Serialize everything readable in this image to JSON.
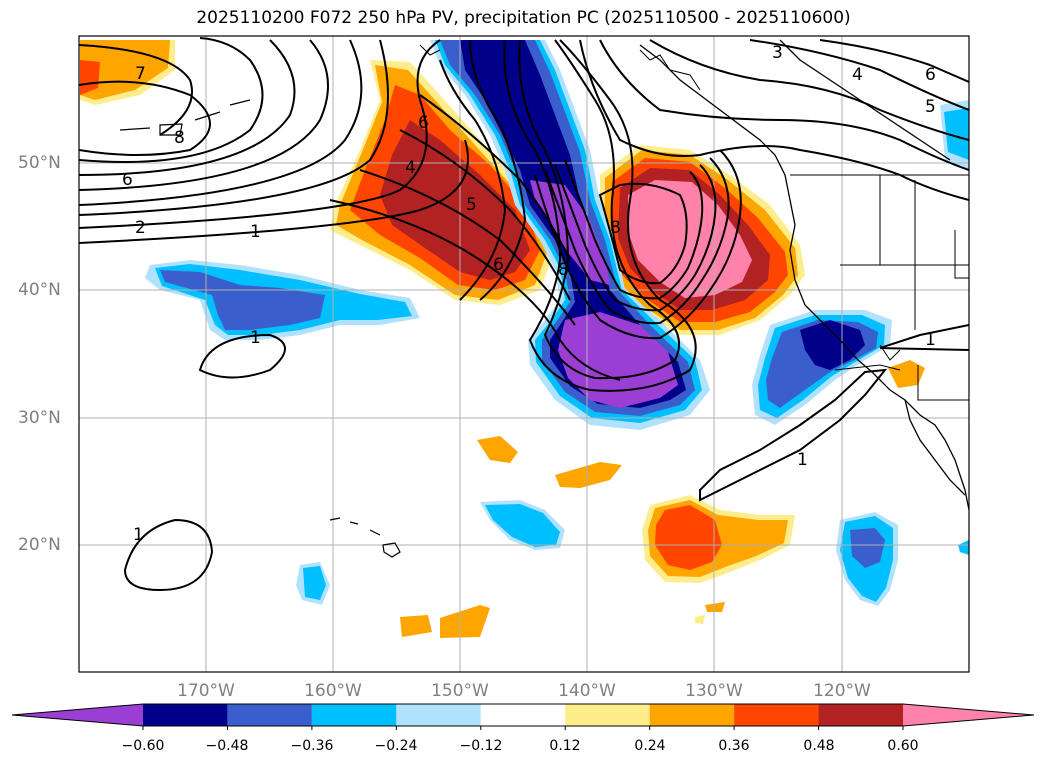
{
  "title": "2025110200 F072 250 hPa PV, precipitation PC (2025110500 - 2025110600)",
  "lat_labels": [
    "50°N",
    "40°N",
    "30°N",
    "20°N"
  ],
  "lon_labels": [
    "170°W",
    "160°W",
    "150°W",
    "140°W",
    "130°W",
    "120°W"
  ],
  "contour_labels": [
    "7",
    "8",
    "6",
    "2",
    "1",
    "1",
    "6",
    "4",
    "5",
    "6",
    "8",
    "8",
    "3",
    "4",
    "6",
    "5",
    "1",
    "1",
    "1"
  ],
  "colorbar": {
    "ticks": [
      "−0.60",
      "−0.48",
      "−0.36",
      "−0.24",
      "−0.12",
      "0.12",
      "0.24",
      "0.36",
      "0.48",
      "0.60"
    ],
    "colors": [
      "#9b3ed3",
      "#00008b",
      "#3a5fcd",
      "#00bfff",
      "#b0e2ff",
      "#ffffff",
      "#ffec8b",
      "#ffa500",
      "#ff4500",
      "#b22222",
      "#ff82ab"
    ]
  },
  "chart_data": {
    "type": "heatmap",
    "title": "2025110200 F072 250 hPa PV, precipitation PC (2025110500 - 2025110600)",
    "lon_range": [
      -180,
      -110
    ],
    "lat_range": [
      10,
      60
    ],
    "contour_levels": [
      1,
      2,
      3,
      4,
      5,
      6,
      7,
      8,
      9
    ],
    "colorbar_levels": [
      -0.6,
      -0.48,
      -0.36,
      -0.24,
      -0.12,
      0.12,
      0.24,
      0.36,
      0.48,
      0.6
    ],
    "grid": true
  }
}
